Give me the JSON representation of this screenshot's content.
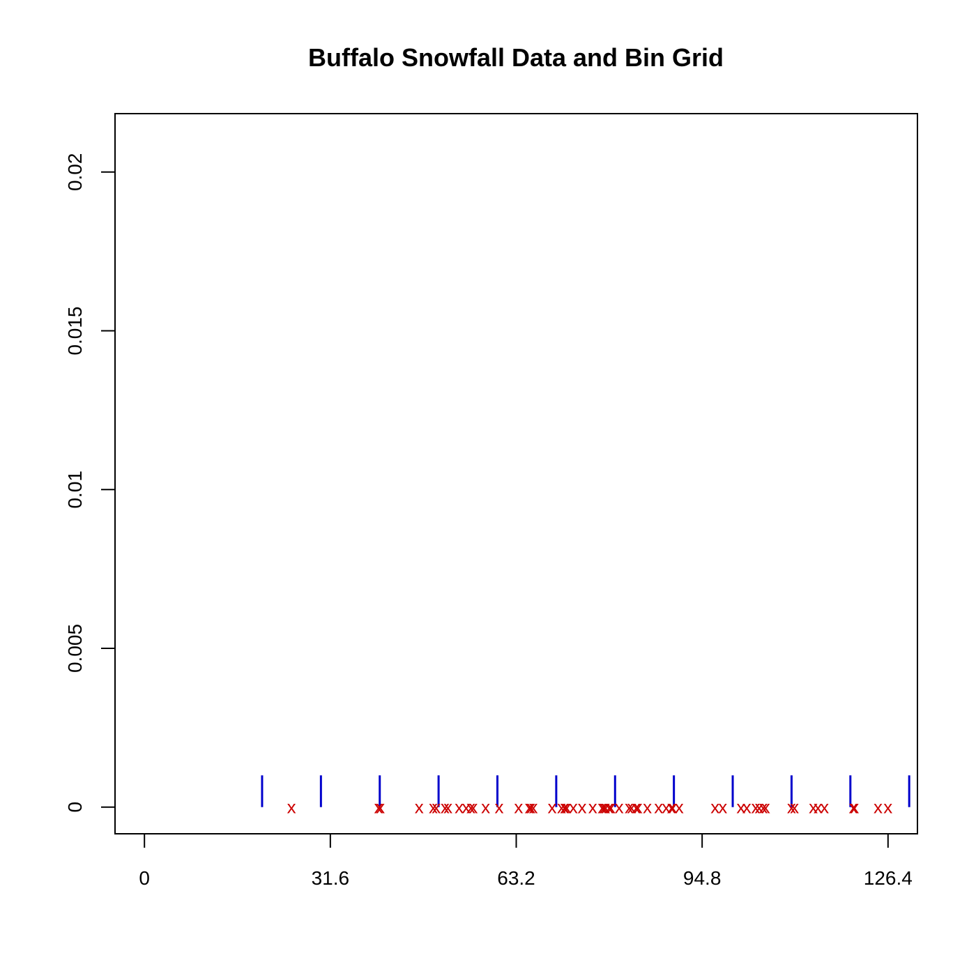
{
  "chart_data": {
    "type": "scatter",
    "title": "Buffalo Snowfall Data and Bin Grid",
    "xlabel": "",
    "ylabel": "",
    "xlim": [
      -5,
      131.4
    ],
    "ylim": [
      -0.00084,
      0.02184
    ],
    "x_ticks": [
      {
        "value": 0,
        "label": "0"
      },
      {
        "value": 31.6,
        "label": "31.6"
      },
      {
        "value": 63.2,
        "label": "63.2"
      },
      {
        "value": 94.8,
        "label": "94.8"
      },
      {
        "value": 126.4,
        "label": "126.4"
      }
    ],
    "y_ticks": [
      {
        "value": 0,
        "label": "0"
      },
      {
        "value": 0.005,
        "label": "0.005"
      },
      {
        "value": 0.01,
        "label": "0.01"
      },
      {
        "value": 0.015,
        "label": "0.015"
      },
      {
        "value": 0.02,
        "label": "0.02"
      }
    ],
    "grid": false,
    "marker": "x",
    "marker_color": "#cc0000",
    "bin_line_color": "#0000cc",
    "bin_line_height": 0.001,
    "bin_edges": [
      20,
      30,
      40,
      50,
      60,
      70,
      80,
      90,
      100,
      110,
      120,
      130
    ],
    "series": [
      {
        "y": 0,
        "x": [
          25.0,
          39.8,
          40.1,
          46.7,
          49.1,
          49.6,
          51.1,
          51.6,
          53.5,
          54.7,
          55.5,
          55.9,
          58.0,
          60.3,
          63.6,
          65.4,
          65.7,
          66.1,
          69.3,
          70.9,
          71.4,
          71.5,
          71.8,
          72.9,
          74.4,
          76.2,
          77.8,
          78.1,
          78.4,
          79.0,
          79.3,
          80.7,
          82.4,
          82.8,
          83.6,
          83.9,
          85.5,
          87.4,
          88.7,
          89.6,
          89.8,
          90.9,
          97.0,
          98.3,
          101.4,
          102.4,
          103.9,
          104.5,
          105.2,
          105.6,
          110.0,
          110.5,
          113.7,
          114.5,
          115.6,
          120.5,
          120.7,
          124.7,
          126.4
        ]
      }
    ]
  }
}
